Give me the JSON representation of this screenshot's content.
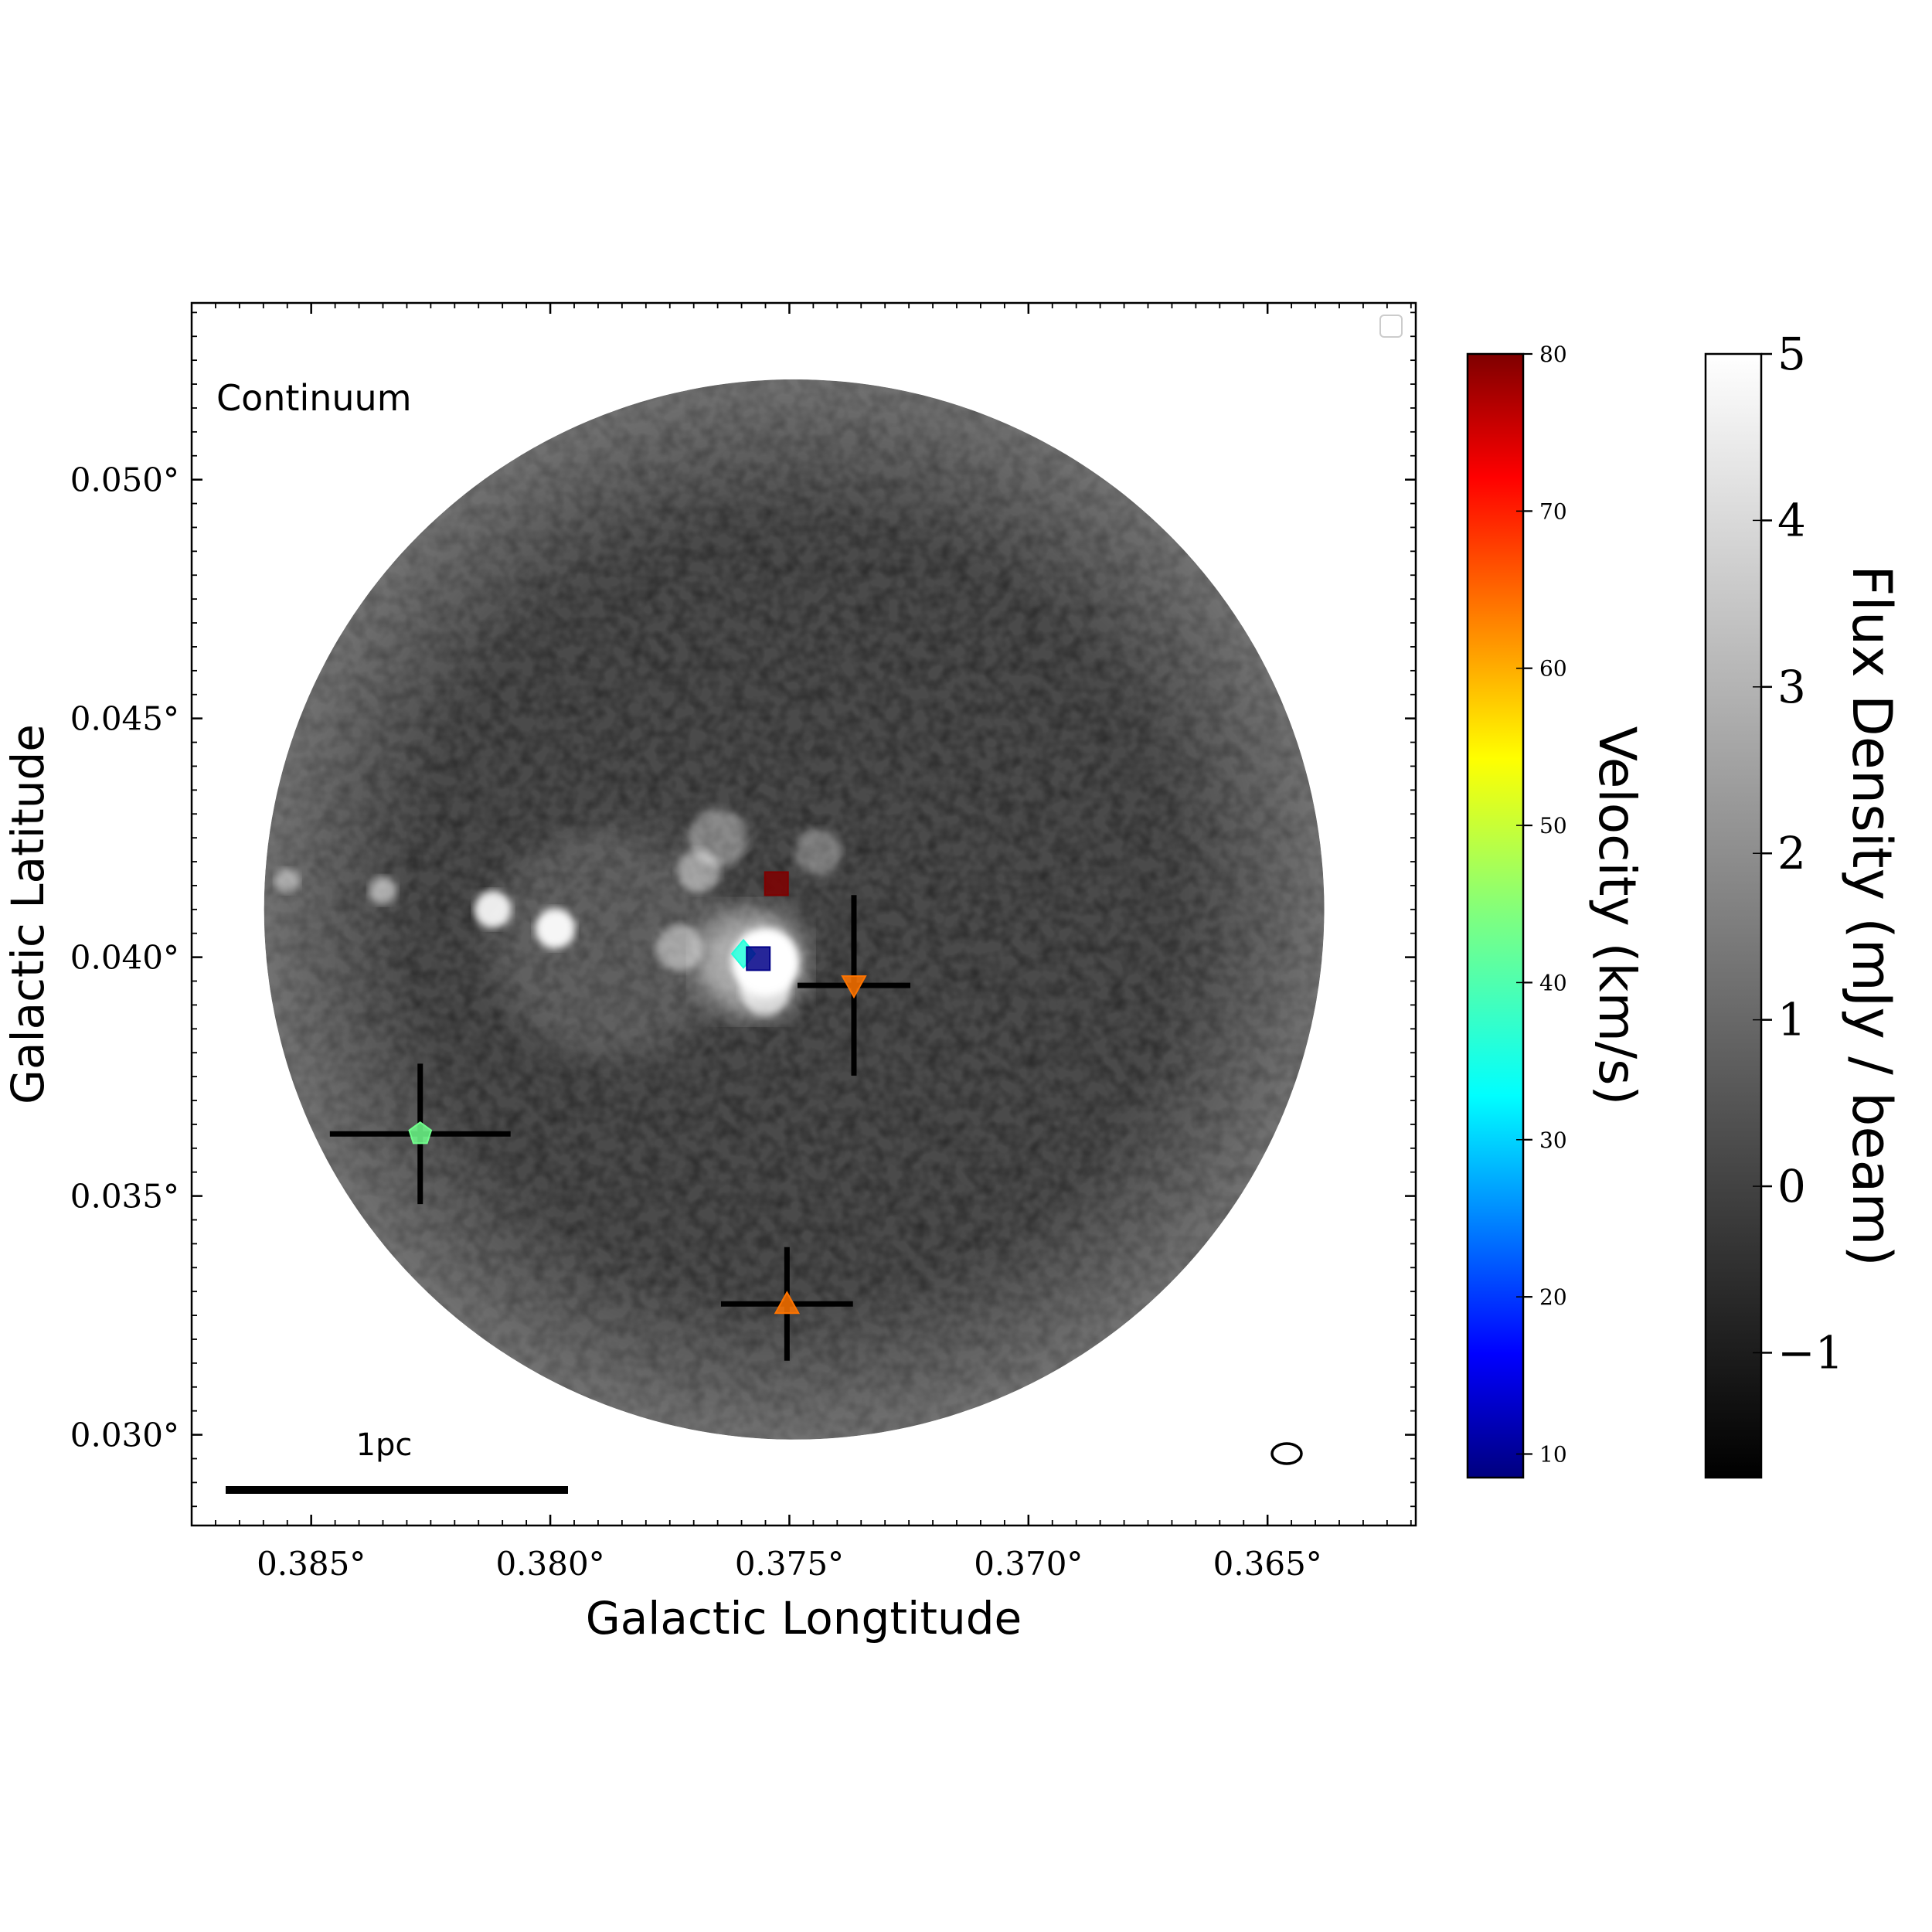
{
  "chart_data": {
    "type": "scatter",
    "panel_label": "Continuum",
    "xlabel": "Galactic Longtitude",
    "ylabel": "Galactic Latitude",
    "xlim": [
      0.3875,
      0.3619
    ],
    "ylim": [
      0.0281,
      0.0537
    ],
    "x_ticks": [
      {
        "value": 0.385,
        "label": "0.385°"
      },
      {
        "value": 0.38,
        "label": "0.380°"
      },
      {
        "value": 0.375,
        "label": "0.375°"
      },
      {
        "value": 0.37,
        "label": "0.370°"
      },
      {
        "value": 0.365,
        "label": "0.365°"
      }
    ],
    "y_ticks": [
      {
        "value": 0.03,
        "label": "0.030°"
      },
      {
        "value": 0.035,
        "label": "0.035°"
      },
      {
        "value": 0.04,
        "label": "0.040°"
      },
      {
        "value": 0.045,
        "label": "0.045°"
      },
      {
        "value": 0.05,
        "label": "0.050°"
      }
    ],
    "image": {
      "colormap": "gray",
      "field_center": [
        0.3749,
        0.041
      ],
      "field_radius_deg": 0.0111
    },
    "sources": [
      {
        "marker": "square",
        "l": 0.37527,
        "b": 0.04154,
        "velocity": 80
      },
      {
        "marker": "diamond",
        "l": 0.37596,
        "b": 0.04007,
        "velocity": 36
      },
      {
        "marker": "square",
        "l": 0.37565,
        "b": 0.03997,
        "velocity": 9
      },
      {
        "marker": "triangle-down",
        "l": 0.37365,
        "b": 0.03941,
        "velocity": 64,
        "err_l": 0.00118,
        "err_b": 0.00189
      },
      {
        "marker": "pentagon",
        "l": 0.38272,
        "b": 0.0363,
        "velocity": 43,
        "err_l": 0.00189,
        "err_b": 0.00147
      },
      {
        "marker": "triangle-up",
        "l": 0.37505,
        "b": 0.03274,
        "velocity": 64,
        "err_l": 0.00138,
        "err_b": 0.00119
      }
    ],
    "scale_bar": {
      "label": "1pc"
    },
    "velocity_colorbar": {
      "label": "Velocity (km/s)",
      "range": [
        8.5,
        80
      ],
      "ticks": [
        10,
        20,
        30,
        40,
        50,
        60,
        70,
        80
      ],
      "colormap": "jet"
    },
    "flux_colorbar": {
      "label": "Flux Density (mJy / beam)",
      "range": [
        -1.75,
        5
      ],
      "ticks": [
        {
          "value": -1,
          "label": "−1"
        },
        {
          "value": 0,
          "label": "0"
        },
        {
          "value": 1,
          "label": "1"
        },
        {
          "value": 2,
          "label": "2"
        },
        {
          "value": 3,
          "label": "3"
        },
        {
          "value": 4,
          "label": "4"
        },
        {
          "value": 5,
          "label": "5"
        }
      ],
      "colormap": "gray"
    }
  }
}
